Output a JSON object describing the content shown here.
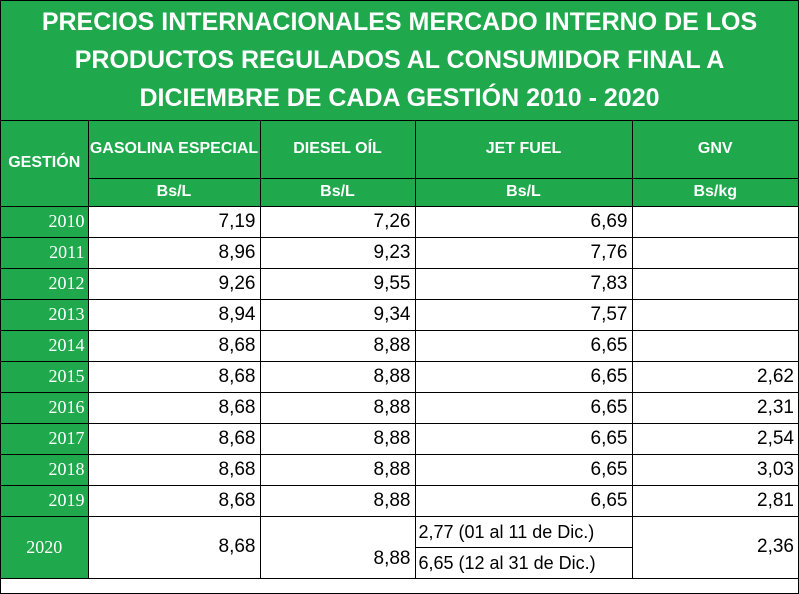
{
  "title": {
    "line1": "PRECIOS INTERNACIONALES MERCADO INTERNO DE LOS",
    "line2": "PRODUCTOS REGULADOS AL CONSUMIDOR FINAL A",
    "line3": "DICIEMBRE DE CADA GESTIÓN 2010 - 2020"
  },
  "headers": {
    "gestion": "GESTIÓN",
    "gasolina": "GASOLINA ESPECIAL",
    "diesel": "DIESEL OÍL",
    "jetfuel": "JET FUEL",
    "gnv": "GNV"
  },
  "units": {
    "gasolina": "Bs/L",
    "diesel": "Bs/L",
    "jetfuel": "Bs/L",
    "gnv": "Bs/kg"
  },
  "rows": [
    {
      "year": "2010",
      "gasolina": "7,19",
      "diesel": "7,26",
      "jetfuel": "6,69",
      "gnv": ""
    },
    {
      "year": "2011",
      "gasolina": "8,96",
      "diesel": "9,23",
      "jetfuel": "7,76",
      "gnv": ""
    },
    {
      "year": "2012",
      "gasolina": "9,26",
      "diesel": "9,55",
      "jetfuel": "7,83",
      "gnv": ""
    },
    {
      "year": "2013",
      "gasolina": "8,94",
      "diesel": "9,34",
      "jetfuel": "7,57",
      "gnv": ""
    },
    {
      "year": "2014",
      "gasolina": "8,68",
      "diesel": "8,88",
      "jetfuel": "6,65",
      "gnv": ""
    },
    {
      "year": "2015",
      "gasolina": "8,68",
      "diesel": "8,88",
      "jetfuel": "6,65",
      "gnv": "2,62"
    },
    {
      "year": "2016",
      "gasolina": "8,68",
      "diesel": "8,88",
      "jetfuel": "6,65",
      "gnv": "2,31"
    },
    {
      "year": "2017",
      "gasolina": "8,68",
      "diesel": "8,88",
      "jetfuel": "6,65",
      "gnv": "2,54"
    },
    {
      "year": "2018",
      "gasolina": "8,68",
      "diesel": "8,88",
      "jetfuel": "6,65",
      "gnv": "3,03"
    },
    {
      "year": "2019",
      "gasolina": "8,68",
      "diesel": "8,88",
      "jetfuel": "6,65",
      "gnv": "2,81"
    }
  ],
  "row2020": {
    "year": "2020",
    "gasolina": "8,68",
    "diesel": "8,88",
    "jetfuel_a": "2,77  (01 al 11 de Dic.)",
    "jetfuel_b": "6,65  (12 al 31 de Dic.)",
    "gnv": "2,36"
  },
  "colors": {
    "header_green": "#1fa84c",
    "header_text": "#ffffff",
    "grid": "#000000"
  }
}
